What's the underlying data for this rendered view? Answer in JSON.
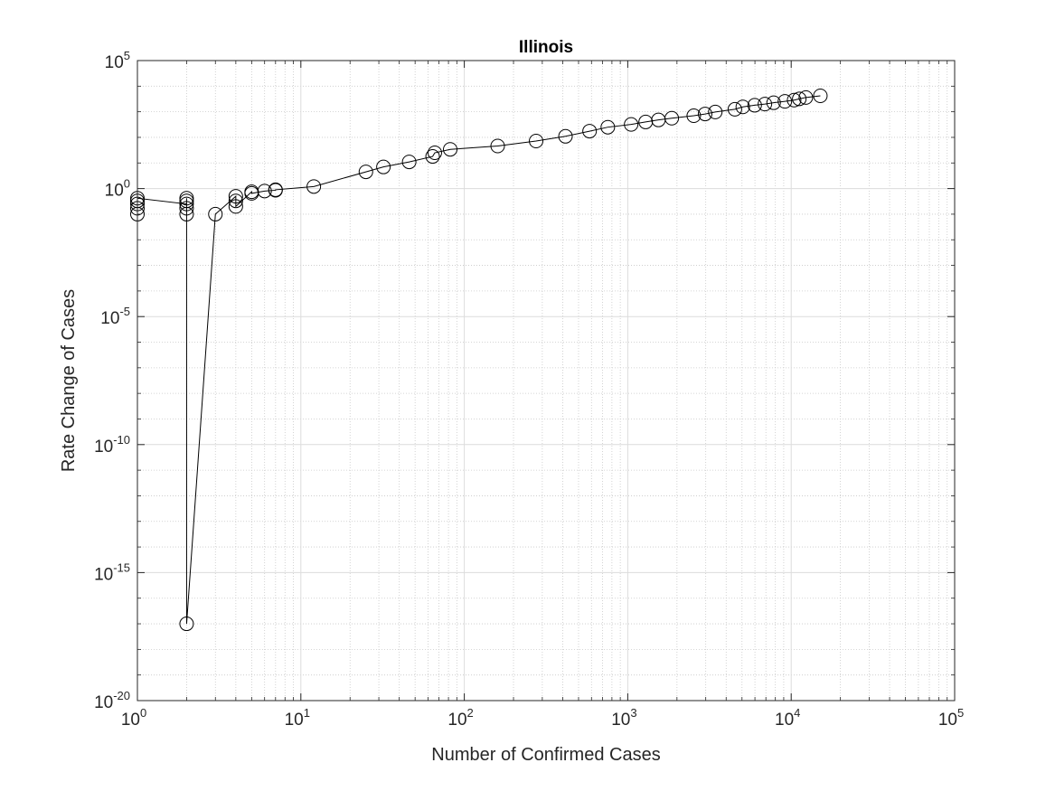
{
  "chart_data": {
    "type": "line",
    "title": "Illinois",
    "xlabel": "Number of Confirmed Cases",
    "ylabel": "Rate Change of Cases",
    "xscale": "log",
    "yscale": "log",
    "xlim": [
      1,
      100000
    ],
    "ylim": [
      1e-20,
      100000
    ],
    "x_ticks": [
      {
        "base": "10",
        "exp": "0",
        "value": 1
      },
      {
        "base": "10",
        "exp": "1",
        "value": 10
      },
      {
        "base": "10",
        "exp": "2",
        "value": 100
      },
      {
        "base": "10",
        "exp": "3",
        "value": 1000
      },
      {
        "base": "10",
        "exp": "4",
        "value": 10000
      },
      {
        "base": "10",
        "exp": "5",
        "value": 100000
      }
    ],
    "y_ticks": [
      {
        "base": "10",
        "exp": "-20",
        "value": 1e-20
      },
      {
        "base": "10",
        "exp": "-15",
        "value": 1e-15
      },
      {
        "base": "10",
        "exp": "-10",
        "value": 1e-10
      },
      {
        "base": "10",
        "exp": "-5",
        "value": 1e-05
      },
      {
        "base": "10",
        "exp": "0",
        "value": 1
      },
      {
        "base": "10",
        "exp": "5",
        "value": 100000
      }
    ],
    "grid": true,
    "minor_grid": true,
    "marker": "circle",
    "line_color": "#000000",
    "series": [
      {
        "x": [
          1,
          1,
          1,
          1,
          1,
          2,
          2,
          2,
          2,
          2,
          2,
          3,
          4,
          4,
          4,
          5,
          5,
          6,
          7,
          7,
          12,
          25,
          32,
          46,
          64,
          66,
          82,
          160,
          275,
          416,
          584,
          755,
          1049,
          1287,
          1541,
          1859,
          2535,
          2973,
          3432,
          4523,
          5057,
          5979,
          6904,
          7809,
          9148,
          10419,
          11205,
          12288,
          15079
        ],
        "y": [
          0.1,
          0.17,
          0.25,
          0.33,
          0.42,
          0.25,
          0.1,
          0.17,
          0.33,
          0.42,
          1e-17,
          0.1,
          0.5,
          0.33,
          0.2,
          0.75,
          0.65,
          0.8,
          0.86,
          0.9,
          1.2,
          4.5,
          7,
          11,
          18,
          25,
          34,
          46,
          72,
          110,
          175,
          250,
          320,
          400,
          480,
          560,
          700,
          820,
          980,
          1250,
          1550,
          1800,
          2000,
          2250,
          2550,
          2850,
          3200,
          3600,
          4200
        ]
      }
    ]
  }
}
